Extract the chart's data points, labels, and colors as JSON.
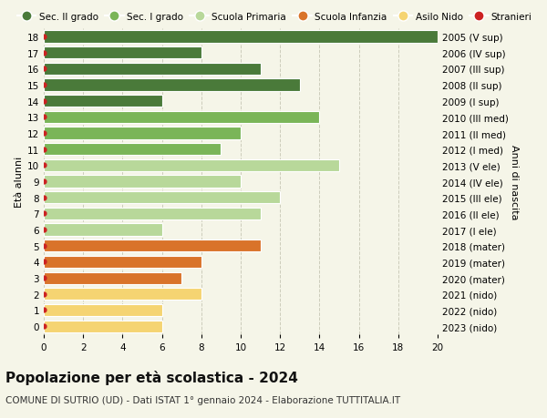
{
  "ages": [
    18,
    17,
    16,
    15,
    14,
    13,
    12,
    11,
    10,
    9,
    8,
    7,
    6,
    5,
    4,
    3,
    2,
    1,
    0
  ],
  "right_labels": [
    "2005 (V sup)",
    "2006 (IV sup)",
    "2007 (III sup)",
    "2008 (II sup)",
    "2009 (I sup)",
    "2010 (III med)",
    "2011 (II med)",
    "2012 (I med)",
    "2013 (V ele)",
    "2014 (IV ele)",
    "2015 (III ele)",
    "2016 (II ele)",
    "2017 (I ele)",
    "2018 (mater)",
    "2019 (mater)",
    "2020 (mater)",
    "2021 (nido)",
    "2022 (nido)",
    "2023 (nido)"
  ],
  "values": [
    20,
    8,
    11,
    13,
    6,
    14,
    10,
    9,
    15,
    10,
    12,
    11,
    6,
    11,
    8,
    7,
    8,
    6,
    6
  ],
  "bar_colors": [
    "#4a7a3a",
    "#4a7a3a",
    "#4a7a3a",
    "#4a7a3a",
    "#4a7a3a",
    "#7ab558",
    "#7ab558",
    "#7ab558",
    "#b8d89a",
    "#b8d89a",
    "#b8d89a",
    "#b8d89a",
    "#b8d89a",
    "#d9732a",
    "#d9732a",
    "#d9732a",
    "#f5d472",
    "#f5d472",
    "#f5d472"
  ],
  "dot_color": "#cc2222",
  "title": "Popolazione per età scolastica - 2024",
  "subtitle": "COMUNE DI SUTRIO (UD) - Dati ISTAT 1° gennaio 2024 - Elaborazione TUTTITALIA.IT",
  "ylabel_left": "Età alunni",
  "ylabel_right": "Anni di nascita",
  "xlim": [
    0,
    20
  ],
  "xticks": [
    0,
    2,
    4,
    6,
    8,
    10,
    12,
    14,
    16,
    18,
    20
  ],
  "legend_labels": [
    "Sec. II grado",
    "Sec. I grado",
    "Scuola Primaria",
    "Scuola Infanzia",
    "Asilo Nido",
    "Stranieri"
  ],
  "legend_colors": [
    "#4a7a3a",
    "#7ab558",
    "#b8d89a",
    "#d9732a",
    "#f5d472",
    "#cc2222"
  ],
  "background_color": "#f5f5e8",
  "grid_color": "#ccccbb",
  "title_fontsize": 11,
  "subtitle_fontsize": 7.5,
  "tick_fontsize": 7.5,
  "label_fontsize": 8,
  "legend_fontsize": 7.5
}
